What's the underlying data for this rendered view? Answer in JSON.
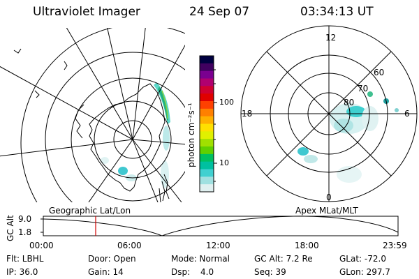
{
  "header": {
    "title": "Ultraviolet Imager",
    "date": "24 Sep 07",
    "time": "03:34:13 UT"
  },
  "colorbar": {
    "unit_label": "photon cm⁻²s⁻¹",
    "ticks": [
      "100",
      "10"
    ],
    "colors": [
      "#000040",
      "#400060",
      "#7a0090",
      "#b00070",
      "#d00030",
      "#e00000",
      "#ff4000",
      "#ff8000",
      "#ffb000",
      "#ffe000",
      "#e0f000",
      "#a0e000",
      "#60d000",
      "#00c060",
      "#00c0a0",
      "#40d0d0",
      "#a0e0e0",
      "#e0f0f0"
    ]
  },
  "polar_plot": {
    "mlt_labels": {
      "top": "12",
      "left": "18",
      "right": "6",
      "bottom": "0"
    },
    "lat_labels": [
      "60",
      "70",
      "80"
    ]
  },
  "panel_labels": {
    "left": "Geographic Lat/Lon",
    "right": "Apex MLat/MLT"
  },
  "altitude_plot": {
    "ylabel": "GC Alt",
    "yticks": [
      "9.0",
      "1.8"
    ],
    "xticks": [
      "00:00",
      "06:00",
      "12:00",
      "18:00",
      "23:59"
    ],
    "marker_color": "#d00000"
  },
  "info": {
    "row1": {
      "filter": "Flt: LBHL",
      "door": "Door: Open",
      "mode": "Mode: Normal",
      "gc_alt": "GC Alt: 7.2 Re",
      "glat": "GLat: -72.0"
    },
    "row2": {
      "ip": "IP: 36.0",
      "gain": "Gain: 14",
      "dsp_label": "Dsp:",
      "dsp_value": "4.0",
      "seq": "Seq: 39",
      "glon": "GLon: 297.7"
    }
  }
}
